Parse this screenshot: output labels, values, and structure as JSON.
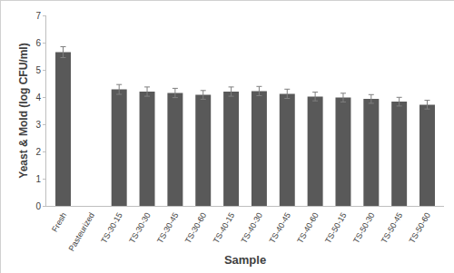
{
  "chart_data": {
    "type": "bar",
    "x_label": "Sample",
    "y_label": "Yeast & Mold (log CFU/ml)",
    "categories": [
      "Fresh",
      "Pasteurized",
      "TS-30-15",
      "TS-30-30",
      "TS-30-45",
      "TS-30-60",
      "TS-40-15",
      "TS-40-30",
      "TS-40-45",
      "TS-40-60",
      "TS-50-15",
      "TS-50-30",
      "TS-50-45",
      "TS-50-60"
    ],
    "values": [
      5.65,
      null,
      4.28,
      4.2,
      4.15,
      4.08,
      4.2,
      4.22,
      4.12,
      4.02,
      3.98,
      3.93,
      3.83,
      3.72
    ],
    "errors": [
      0.2,
      null,
      0.18,
      0.17,
      0.17,
      0.16,
      0.17,
      0.17,
      0.17,
      0.16,
      0.16,
      0.16,
      0.16,
      0.16
    ],
    "color": "#595959",
    "ylim": [
      0,
      7
    ],
    "yticks": [
      0,
      1,
      2,
      3,
      4,
      5,
      6,
      7
    ],
    "grid": false
  }
}
